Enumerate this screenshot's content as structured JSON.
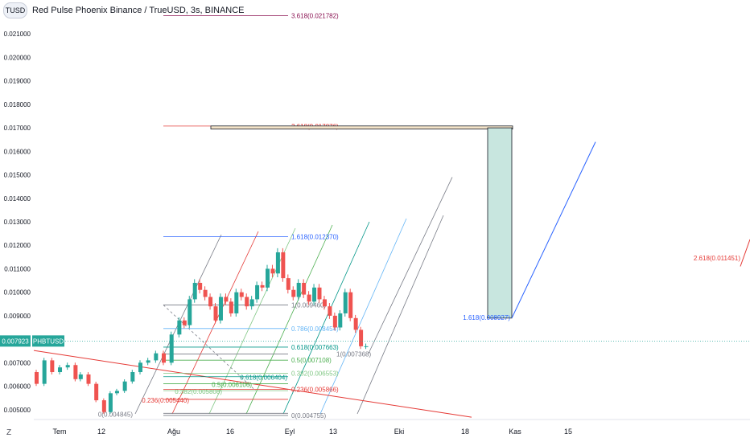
{
  "header": {
    "symbol_badge": "TUSD",
    "title": "Red Pulse Phoenix Binance / TrueUSD, 3s, BINANCE"
  },
  "scale_button": "Z",
  "price_badge": {
    "value": "0.007923",
    "symbol": "PHBTUSD"
  },
  "chart_data": {
    "type": "candlestick",
    "y_axis": {
      "ticks": [
        "0.005000",
        "0.006000",
        "0.007000",
        "0.008000",
        "0.009000",
        "0.010000",
        "0.011000",
        "0.012000",
        "0.013000",
        "0.014000",
        "0.015000",
        "0.016000",
        "0.017000",
        "0.018000",
        "0.019000",
        "0.020000",
        "0.021000"
      ],
      "ylim": [
        0.00465,
        0.02217
      ]
    },
    "x_axis": {
      "ticks": [
        "Tem",
        "12",
        "Ağu",
        "16",
        "Eyl",
        "13",
        "Eki",
        "18",
        "Kas",
        "15"
      ]
    },
    "current_price": 0.007923,
    "price_path": [
      [
        0,
        0.0066
      ],
      [
        6,
        0.0061
      ],
      [
        12,
        0.0071
      ],
      [
        18,
        0.0066
      ],
      [
        24,
        0.0068
      ],
      [
        30,
        0.0069
      ],
      [
        34,
        0.0063
      ],
      [
        40,
        0.0065
      ],
      [
        46,
        0.0061
      ],
      [
        52,
        0.0054
      ],
      [
        57,
        0.0049
      ],
      [
        62,
        0.0057
      ],
      [
        68,
        0.0058
      ],
      [
        74,
        0.0062
      ],
      [
        80,
        0.0066
      ],
      [
        86,
        0.007
      ],
      [
        92,
        0.0071
      ],
      [
        98,
        0.0074
      ],
      [
        104,
        0.007
      ],
      [
        110,
        0.0082
      ],
      [
        114,
        0.0088
      ],
      [
        118,
        0.0086
      ],
      [
        122,
        0.0097
      ],
      [
        126,
        0.0104
      ],
      [
        130,
        0.0101
      ],
      [
        134,
        0.0098
      ],
      [
        138,
        0.0094
      ],
      [
        142,
        0.0088
      ],
      [
        146,
        0.0098
      ],
      [
        150,
        0.0096
      ],
      [
        154,
        0.0091
      ],
      [
        158,
        0.01
      ],
      [
        162,
        0.0098
      ],
      [
        166,
        0.0094
      ],
      [
        170,
        0.0097
      ],
      [
        174,
        0.0103
      ],
      [
        178,
        0.0102
      ],
      [
        182,
        0.011
      ],
      [
        186,
        0.0108
      ],
      [
        190,
        0.0117
      ],
      [
        194,
        0.0106
      ],
      [
        198,
        0.0101
      ],
      [
        202,
        0.0098
      ],
      [
        206,
        0.0104
      ],
      [
        210,
        0.0099
      ],
      [
        214,
        0.0096
      ],
      [
        218,
        0.0102
      ],
      [
        222,
        0.0097
      ],
      [
        226,
        0.0094
      ],
      [
        230,
        0.009
      ],
      [
        234,
        0.0085
      ],
      [
        238,
        0.0091
      ],
      [
        242,
        0.01
      ],
      [
        246,
        0.0089
      ],
      [
        250,
        0.0084
      ],
      [
        254,
        0.0077
      ],
      [
        258,
        0.0077
      ]
    ],
    "channel": {
      "line_color": "#e53935",
      "points": [
        [
          "Tem",
          0.00752
        ],
        [
          "Kas",
          0.0047
        ]
      ]
    },
    "fib_retracement_left": {
      "levels": [
        {
          "label": "0(0.004845)",
          "value": 0.004845,
          "color": "#787b86"
        },
        {
          "label": "0.236(0.005440)",
          "value": 0.00544,
          "color": "#e53935"
        },
        {
          "label": "0.382(0.005808)",
          "value": 0.005808,
          "color": "#81c784"
        },
        {
          "label": "0.5(0.006106)",
          "value": 0.006106,
          "color": "#4caf50"
        },
        {
          "label": "0.618(0.006404)",
          "value": 0.006404,
          "color": "#009688"
        },
        {
          "label": "1.618(0.012370)",
          "value": 0.01237,
          "color": "#2962ff"
        }
      ]
    },
    "fib_retracement_right": {
      "levels": [
        {
          "label": "0(0.004755)",
          "value": 0.004755,
          "color": "#787b86"
        },
        {
          "label": "0.236(0.005866)",
          "value": 0.005866,
          "color": "#e53935"
        },
        {
          "label": "0.382(0.006553)",
          "value": 0.006553,
          "color": "#81c784"
        },
        {
          "label": "0.5(0.007108)",
          "value": 0.007108,
          "color": "#4caf50"
        },
        {
          "label": "0.618(0.007663)",
          "value": 0.007663,
          "color": "#009688"
        },
        {
          "label": "0.786(0.008454)",
          "value": 0.008454,
          "color": "#64b5f6"
        },
        {
          "label": "1(0.009460)",
          "value": 0.00946,
          "color": "#787b86"
        },
        {
          "label": "1(0.007368)",
          "value": 0.007368,
          "color": "#787b86"
        },
        {
          "label": "2.618(0.017076)",
          "value": 0.017076,
          "color": "#e53935"
        },
        {
          "label": "3.618(0.021782)",
          "value": 0.021782,
          "color": "#880e4f"
        }
      ]
    },
    "fib_extension_far": {
      "levels": [
        {
          "label": "1.618(0.008927)",
          "value": 0.008927,
          "color": "#2962ff"
        },
        {
          "label": "2.618(0.011451)",
          "value": 0.011451,
          "color": "#e53935"
        }
      ]
    },
    "target_box": {
      "top": 0.017,
      "bottom": 0.0089,
      "fill": "#c8e6df",
      "stroke": "#131722"
    },
    "horizontal_bar": {
      "top": 0.01708,
      "bottom": 0.01695,
      "fill": "#f3e3c8"
    },
    "dashed_bullet": {
      "color": "#787b86"
    }
  }
}
